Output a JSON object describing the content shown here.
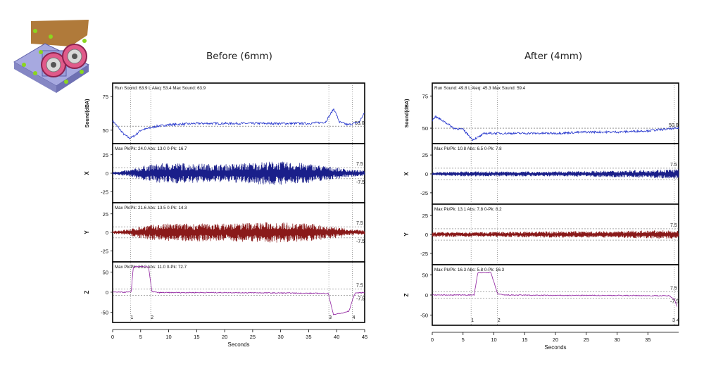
{
  "thumbnail": {
    "name": "mechanical-assembly-thumbnail",
    "icon": "roller-bracket-assembly"
  },
  "titles": {
    "before": "Before (6mm)",
    "after": "After (4mm)"
  },
  "colors": {
    "sound": "#2233cc",
    "x": "#1a1f8a",
    "y": "#8a1a1a",
    "z": "#8e1f9e",
    "frame": "#000000",
    "ref": "#555555"
  },
  "chart_data": [
    {
      "type": "line",
      "title": "Before (6mm)",
      "xlabel": "Seconds",
      "xlim": [
        0,
        45
      ],
      "xticks": [
        0,
        5,
        10,
        15,
        20,
        25,
        30,
        35,
        40,
        45
      ],
      "markers": [
        {
          "label": "1",
          "x": 3.2
        },
        {
          "label": "2",
          "x": 6.8
        },
        {
          "label": "3",
          "x": 38.6
        },
        {
          "label": "4",
          "x": 42.8
        }
      ],
      "panels": [
        {
          "id": "sound",
          "ylabel": "Sound(dBA)",
          "stats": "Run Sound: 63.9 L Aleq: 53.4 Max Sound: 63.9",
          "ylim": [
            40,
            85
          ],
          "yticks": [
            50,
            75
          ],
          "ref_label": "53.0",
          "ref_value": 53.0,
          "series": {
            "values": [
              [
                0,
                57
              ],
              [
                1,
                52
              ],
              [
                2,
                47
              ],
              [
                3,
                44
              ],
              [
                4,
                46
              ],
              [
                5,
                50
              ],
              [
                6,
                51
              ],
              [
                8,
                53
              ],
              [
                10,
                54
              ],
              [
                15,
                55
              ],
              [
                20,
                55
              ],
              [
                25,
                55
              ],
              [
                30,
                55
              ],
              [
                35,
                55
              ],
              [
                38,
                56
              ],
              [
                39.5,
                66
              ],
              [
                40.5,
                56
              ],
              [
                42,
                54
              ],
              [
                44,
                56
              ],
              [
                45,
                63
              ]
            ]
          }
        },
        {
          "id": "x",
          "ylabel": "X",
          "stats": "Max Pk/Pk: 24.0 Abs: 13.0 0-Pk: 16.7",
          "ylim": [
            -40,
            40
          ],
          "yticks": [
            25,
            0,
            -25
          ],
          "ref_label": "7.5",
          "ref_low": "-7.5",
          "amplitude": [
            [
              0,
              2
            ],
            [
              3,
              4
            ],
            [
              6,
              10
            ],
            [
              10,
              13
            ],
            [
              20,
              11
            ],
            [
              29,
              15
            ],
            [
              35,
              12
            ],
            [
              40,
              7
            ],
            [
              42,
              5
            ],
            [
              45,
              3
            ]
          ]
        },
        {
          "id": "y",
          "ylabel": "Y",
          "stats": "Max Pk/Pk: 21.6 Abs: 13.5 0-Pk: 14.3",
          "ylim": [
            -40,
            40
          ],
          "yticks": [
            25,
            0,
            -25
          ],
          "ref_label": "7.5",
          "ref_low": "-7.5",
          "amplitude": [
            [
              0,
              2
            ],
            [
              3,
              4
            ],
            [
              6,
              9
            ],
            [
              10,
              11
            ],
            [
              20,
              11
            ],
            [
              29,
              13
            ],
            [
              35,
              11
            ],
            [
              40,
              7
            ],
            [
              42,
              4
            ],
            [
              45,
              3
            ]
          ]
        },
        {
          "id": "z",
          "ylabel": "Z",
          "stats": "Max Pk/Pk: 18.2 Abs: 11.0 0-Pk: 72.7",
          "ylim": [
            -75,
            75
          ],
          "yticks": [
            50,
            0,
            -50
          ],
          "ref_label": "7.5",
          "ref_low": "-7.5",
          "series": {
            "values": [
              [
                0,
                0
              ],
              [
                3.3,
                0
              ],
              [
                3.7,
                63
              ],
              [
                6.4,
                63
              ],
              [
                7.0,
                2
              ],
              [
                8,
                -1
              ],
              [
                20,
                -1
              ],
              [
                30,
                -2
              ],
              [
                38.5,
                -3
              ],
              [
                39.4,
                -55
              ],
              [
                41,
                -52
              ],
              [
                42.2,
                -47
              ],
              [
                42.8,
                -20
              ],
              [
                43.3,
                -2
              ],
              [
                45,
                -1
              ]
            ]
          }
        }
      ]
    },
    {
      "type": "line",
      "title": "After (4mm)",
      "xlabel": "Seconds",
      "xlim": [
        0,
        40
      ],
      "xticks": [
        0,
        5,
        10,
        15,
        20,
        25,
        30,
        35
      ],
      "markers": [
        {
          "label": "1",
          "x": 6.3
        },
        {
          "label": "2",
          "x": 10.6
        },
        {
          "label": "3 4",
          "x": 39.3
        }
      ],
      "panels": [
        {
          "id": "sound",
          "ylabel": "Sound(dBA)",
          "stats": "Run Sound: 49.8 L Aleq: 45.3 Max Sound: 59.4",
          "ylim": [
            38,
            85
          ],
          "yticks": [
            50,
            75
          ],
          "ref_label": "50.0",
          "ref_value": 50.0,
          "series": {
            "values": [
              [
                0,
                56
              ],
              [
                0.5,
                59
              ],
              [
                2,
                55
              ],
              [
                3.5,
                50
              ],
              [
                5,
                49
              ],
              [
                6,
                44
              ],
              [
                6.5,
                41
              ],
              [
                7.5,
                43
              ],
              [
                8.5,
                46
              ],
              [
                10,
                46
              ],
              [
                15,
                46
              ],
              [
                20,
                46
              ],
              [
                25,
                47
              ],
              [
                30,
                47
              ],
              [
                35,
                48
              ],
              [
                40,
                50
              ]
            ]
          }
        },
        {
          "id": "x",
          "ylabel": "X",
          "stats": "Max Pk/Pk: 10.8 Abs: 6.5 0-Pk: 7.8",
          "ylim": [
            -40,
            40
          ],
          "yticks": [
            25,
            0,
            -25
          ],
          "ref_label": "7.5",
          "amplitude": [
            [
              0,
              2
            ],
            [
              5,
              3
            ],
            [
              10,
              3
            ],
            [
              20,
              3
            ],
            [
              30,
              4
            ],
            [
              35,
              5
            ],
            [
              40,
              6
            ]
          ]
        },
        {
          "id": "y",
          "ylabel": "Y",
          "stats": "Max Pk/Pk: 13.1 Abs: 7.8 0-Pk: 8.2",
          "ylim": [
            -40,
            40
          ],
          "yticks": [
            25,
            0,
            -25
          ],
          "ref_label": "7.5",
          "amplitude": [
            [
              0,
              3
            ],
            [
              5,
              3
            ],
            [
              10,
              3
            ],
            [
              20,
              4
            ],
            [
              30,
              4
            ],
            [
              35,
              5
            ],
            [
              40,
              5
            ]
          ]
        },
        {
          "id": "z",
          "ylabel": "Z",
          "stats": "Max Pk/Pk: 16.3 Abs: 5.8 0-Pk: 16.3",
          "ylim": [
            -75,
            75
          ],
          "yticks": [
            50,
            0,
            -50
          ],
          "ref_label": "7.5",
          "ref_low": "-7.5",
          "series": {
            "values": [
              [
                0,
                0
              ],
              [
                6.8,
                0
              ],
              [
                7.4,
                55
              ],
              [
                9.5,
                56
              ],
              [
                10.6,
                3
              ],
              [
                11.5,
                0
              ],
              [
                20,
                -1
              ],
              [
                30,
                -1
              ],
              [
                38.5,
                -2
              ],
              [
                39.3,
                -10
              ],
              [
                39.8,
                -30
              ]
            ]
          }
        }
      ]
    }
  ]
}
